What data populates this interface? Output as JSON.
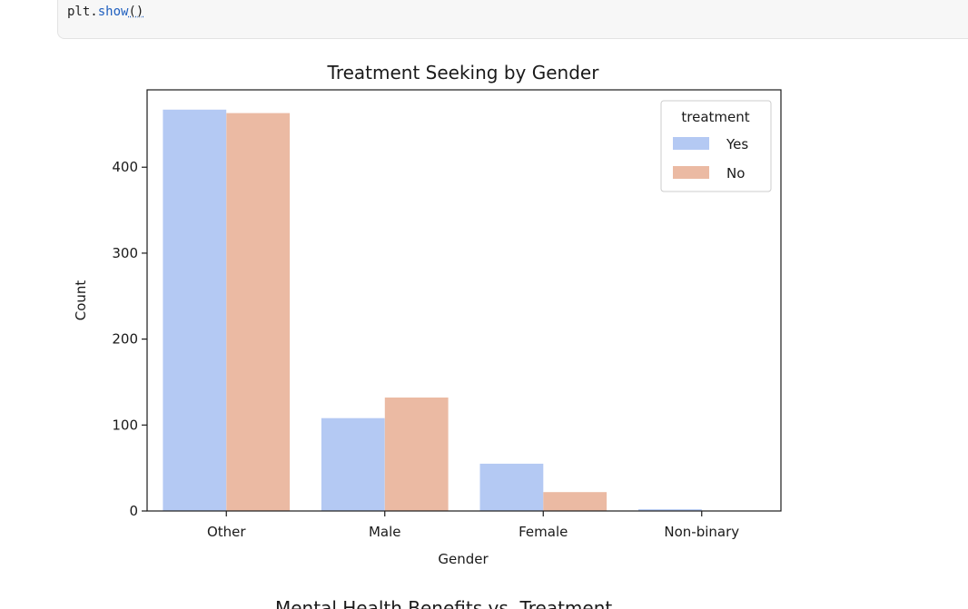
{
  "code_cell": {
    "obj": "plt",
    "dot": ".",
    "method": "show",
    "parens": "()"
  },
  "chart_data": {
    "type": "bar",
    "title": "Treatment Seeking by Gender",
    "xlabel": "Gender",
    "ylabel": "Count",
    "categories": [
      "Other",
      "Male",
      "Female",
      "Non-binary"
    ],
    "series": [
      {
        "name": "Yes",
        "color": "#b4c9f3",
        "values": [
          467,
          108,
          55,
          2
        ]
      },
      {
        "name": "No",
        "color": "#ebbaa3",
        "values": [
          463,
          132,
          22,
          0
        ]
      }
    ],
    "ylim": [
      0,
      490
    ],
    "yticks": [
      0,
      100,
      200,
      300,
      400
    ],
    "legend_title": "treatment",
    "legend_position": "upper right",
    "grid": false
  },
  "next_chart": {
    "title": "Mental Health Benefits vs. Treatment"
  }
}
